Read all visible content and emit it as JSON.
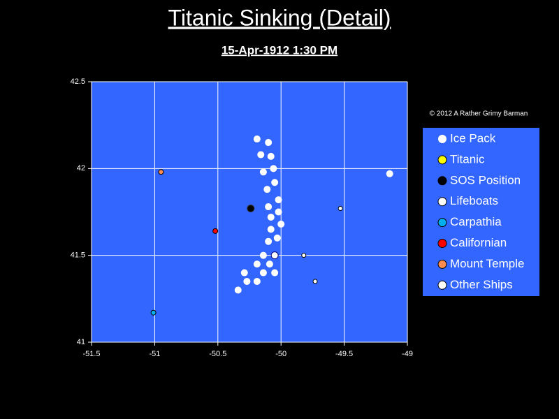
{
  "chart_data": {
    "type": "scatter",
    "title": "Titanic Sinking (Detail)",
    "subtitle": "15-Apr-1912  1:30 PM",
    "annotation": "© 2012  A Rather Grimy Barman",
    "xlim": [
      -51.5,
      -49
    ],
    "xticks": [
      -51.5,
      -51,
      -50.5,
      -50,
      -49.5,
      -49
    ],
    "ylim": [
      41,
      42.5
    ],
    "yticks": [
      41,
      41.5,
      42,
      42.5
    ],
    "grid": true,
    "background": "#3366ff",
    "legend": "right",
    "series": [
      {
        "name": "Ice Pack",
        "color": "#ffffff",
        "x": [
          -50.19,
          -50.1,
          -50.16,
          -50.08,
          -50.14,
          -50.06,
          -50.05,
          -50.11,
          -50.02,
          -50.1,
          -50.02,
          -50.08,
          -50.0,
          -50.08,
          -50.03,
          -50.1,
          -50.14,
          -50.19,
          -50.09,
          -50.29,
          -50.14,
          -50.05,
          -50.27,
          -50.19,
          -50.34,
          -49.14
        ],
        "y": [
          42.17,
          42.15,
          42.08,
          42.07,
          41.98,
          42.0,
          41.92,
          41.88,
          41.82,
          41.78,
          41.75,
          41.72,
          41.68,
          41.65,
          41.6,
          41.58,
          41.5,
          41.45,
          41.45,
          41.4,
          41.4,
          41.4,
          41.35,
          41.35,
          41.3,
          41.97
        ]
      },
      {
        "name": "Titanic",
        "color": "#ffff00",
        "x": [],
        "y": []
      },
      {
        "name": "SOS Position",
        "color": "#000000",
        "x": [
          -50.24
        ],
        "y": [
          41.77
        ]
      },
      {
        "name": "Lifeboats",
        "color": "#ffffff",
        "x": [
          -50.05
        ],
        "y": [
          41.5
        ]
      },
      {
        "name": "Carpathia",
        "color": "#00b0f0",
        "x": [
          -51.01
        ],
        "y": [
          41.17
        ]
      },
      {
        "name": "Californian",
        "color": "#ff0000",
        "x": [
          -50.52
        ],
        "y": [
          41.64
        ]
      },
      {
        "name": "Mount Temple",
        "color": "#ff8c50",
        "x": [
          -50.95
        ],
        "y": [
          41.98
        ]
      },
      {
        "name": "Other Ships",
        "color": "#ffffff",
        "x": [
          -49.53,
          -49.82,
          -49.73
        ],
        "y": [
          41.77,
          41.5,
          41.35
        ]
      }
    ]
  }
}
